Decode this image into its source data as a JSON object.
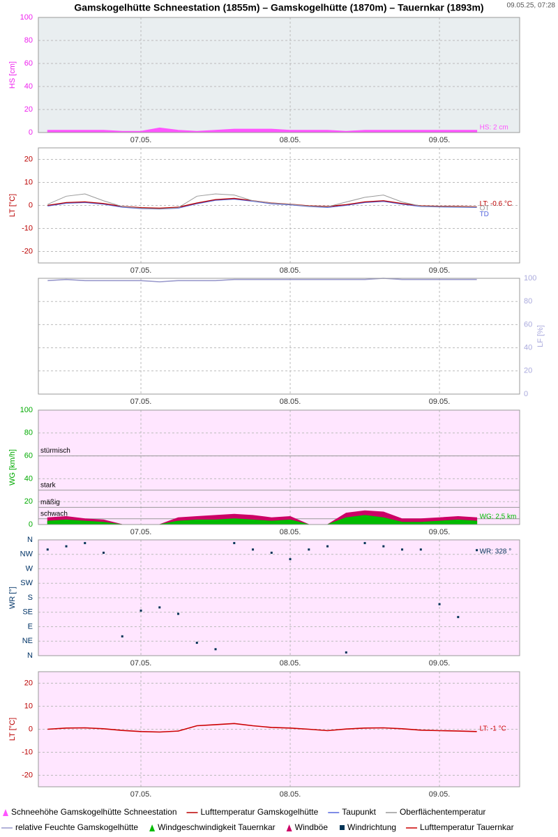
{
  "header": {
    "title": "Gamskogelhütte Schneestation (1855m) – Gamskogelhütte (1870m) – Tauernkar (1893m)",
    "timestamp": "09.05.25, 07:28"
  },
  "chart_data": [
    {
      "type": "area",
      "ylabel": "HS [cm]",
      "axis_color": "#ee22ee",
      "background": "#e9eef0",
      "grid": true,
      "xlim": [
        6.313,
        9.537
      ],
      "xticks": [
        {
          "value": 7,
          "label": "07.05."
        },
        {
          "value": 8,
          "label": "08.05."
        },
        {
          "value": 9,
          "label": "09.05."
        }
      ],
      "ylim": [
        0,
        100
      ],
      "yticks": [
        0,
        20,
        40,
        60,
        80,
        100
      ],
      "x": [
        6.375,
        6.5,
        6.625,
        6.75,
        6.875,
        7.0,
        7.125,
        7.25,
        7.375,
        7.5,
        7.625,
        7.75,
        7.875,
        8.0,
        8.125,
        8.25,
        8.375,
        8.5,
        8.625,
        8.75,
        8.875,
        9.0,
        9.125,
        9.25
      ],
      "series": [
        {
          "name": "Schneehöhe Gamskogelhütte Schneestation",
          "color": "#ff55ff",
          "label": "HS: 2 cm",
          "values": [
            2,
            2,
            2,
            2,
            1,
            1,
            4,
            2,
            1,
            2,
            3,
            3,
            3,
            2,
            2,
            2,
            1,
            2,
            2,
            2,
            2,
            2,
            2,
            2
          ]
        }
      ]
    },
    {
      "type": "line",
      "ylabel": "LT [°C]",
      "axis_color": "#bb0000",
      "background": "#ffffff",
      "grid": true,
      "xlim": [
        6.313,
        9.537
      ],
      "xticks": [
        {
          "value": 7,
          "label": "07.05."
        },
        {
          "value": 8,
          "label": "08.05."
        },
        {
          "value": 9,
          "label": "09.05."
        }
      ],
      "ylim": [
        -25,
        25
      ],
      "yticks": [
        -20,
        -10,
        0,
        10,
        20
      ],
      "x": [
        6.375,
        6.5,
        6.625,
        6.75,
        6.875,
        7.0,
        7.125,
        7.25,
        7.375,
        7.5,
        7.625,
        7.75,
        7.875,
        8.0,
        8.125,
        8.25,
        8.375,
        8.5,
        8.625,
        8.75,
        8.875,
        9.0,
        9.125,
        9.25
      ],
      "series": [
        {
          "name": "Lufttemperatur Gamskogelhütte",
          "color": "#bb0000",
          "label": "LT: -0.6 °C",
          "values": [
            0.0,
            1.2,
            1.5,
            0.8,
            -0.5,
            -1.0,
            -1.2,
            -0.8,
            1.0,
            2.5,
            3.0,
            2.0,
            1.0,
            0.5,
            -0.2,
            -0.5,
            0.3,
            1.5,
            2.0,
            0.8,
            -0.2,
            -0.4,
            -0.5,
            -0.6
          ]
        },
        {
          "name": "Taupunkt",
          "color": "#5566dd",
          "label": "TD",
          "values": [
            -0.3,
            0.9,
            1.2,
            0.5,
            -0.8,
            -1.4,
            -1.6,
            -1.2,
            0.7,
            2.2,
            2.7,
            1.8,
            0.7,
            0.2,
            -0.5,
            -0.9,
            0.0,
            1.2,
            1.7,
            0.5,
            -0.5,
            -0.7,
            -0.8,
            -0.9
          ]
        },
        {
          "name": "Oberflächentemperatur",
          "color": "#999999",
          "label": "OT",
          "values": [
            0.5,
            4.0,
            5.0,
            2.0,
            -0.5,
            -1.2,
            -1.5,
            -1.0,
            4.0,
            5.0,
            4.5,
            2.0,
            1.0,
            0.5,
            -0.3,
            -0.6,
            1.5,
            3.5,
            4.5,
            1.5,
            -0.3,
            -0.5,
            -0.6,
            -0.7
          ]
        }
      ]
    },
    {
      "type": "line",
      "ylabel": "LF [%]",
      "yaxis": "right",
      "axis_color": "#aaaadd",
      "background": "#ffffff",
      "grid": true,
      "xlim": [
        6.313,
        9.537
      ],
      "xticks": [
        {
          "value": 7,
          "label": "07.05."
        },
        {
          "value": 8,
          "label": "08.05."
        },
        {
          "value": 9,
          "label": "09.05."
        }
      ],
      "ylim": [
        0,
        100
      ],
      "yticks": [
        0,
        20,
        40,
        60,
        80,
        100
      ],
      "x": [
        6.375,
        6.5,
        6.625,
        6.75,
        6.875,
        7.0,
        7.125,
        7.25,
        7.375,
        7.5,
        7.625,
        7.75,
        7.875,
        8.0,
        8.125,
        8.25,
        8.375,
        8.5,
        8.625,
        8.75,
        8.875,
        9.0,
        9.125,
        9.25
      ],
      "series": [
        {
          "name": "relative Feuchte Gamskogelhütte",
          "color": "#9999cc",
          "values": [
            98,
            99,
            98,
            98,
            98,
            98,
            97,
            98,
            98,
            98,
            99,
            99,
            99,
            99,
            99,
            99,
            99,
            99,
            100,
            99,
            99,
            99,
            99,
            99
          ]
        }
      ]
    },
    {
      "type": "area",
      "ylabel": "WG [km/h]",
      "axis_color": "#00aa00",
      "background": "#ffe6ff",
      "grid": true,
      "xlim": [
        6.313,
        9.537
      ],
      "xticks": [
        {
          "value": 7,
          "label": "07.05."
        },
        {
          "value": 8,
          "label": "08.05."
        },
        {
          "value": 9,
          "label": "09.05."
        }
      ],
      "ylim": [
        0,
        100
      ],
      "yticks": [
        0,
        20,
        40,
        60,
        80,
        100
      ],
      "thresholds": [
        {
          "value": 60,
          "label": "stürmisch"
        },
        {
          "value": 30,
          "label": "stark"
        },
        {
          "value": 15,
          "label": "mäßig"
        },
        {
          "value": 5,
          "label": "schwach"
        }
      ],
      "x": [
        6.375,
        6.5,
        6.625,
        6.75,
        6.875,
        7.0,
        7.125,
        7.25,
        7.375,
        7.5,
        7.625,
        7.75,
        7.875,
        8.0,
        8.125,
        8.25,
        8.375,
        8.5,
        8.625,
        8.75,
        8.875,
        9.0,
        9.125,
        9.25
      ],
      "series": [
        {
          "name": "Windgeschwindigkeit Tauernkar",
          "color": "#00bb00",
          "label": "WG: 2,5 km",
          "values": [
            3,
            4,
            3,
            2,
            0,
            0,
            0,
            3,
            4,
            4,
            5,
            4,
            3,
            4,
            0,
            0,
            6,
            8,
            6,
            2,
            2,
            3,
            4,
            3
          ]
        },
        {
          "name": "Windböe",
          "color": "#cc0066",
          "values": [
            6,
            7,
            5,
            4,
            0,
            0,
            0,
            6,
            7,
            8,
            9,
            8,
            6,
            7,
            0,
            0,
            10,
            12,
            11,
            5,
            5,
            6,
            7,
            6
          ]
        }
      ]
    },
    {
      "type": "scatter",
      "ylabel": "WR [°]",
      "axis_color": "#003366",
      "background": "#ffe6ff",
      "grid": true,
      "xlim": [
        6.313,
        9.537
      ],
      "xticks": [
        {
          "value": 7,
          "label": "07.05."
        },
        {
          "value": 8,
          "label": "08.05."
        },
        {
          "value": 9,
          "label": "09.05."
        }
      ],
      "ylim": [
        0,
        360
      ],
      "yticks": [
        {
          "value": 0,
          "label": "N"
        },
        {
          "value": 45,
          "label": "NE"
        },
        {
          "value": 90,
          "label": "E"
        },
        {
          "value": 135,
          "label": "SE"
        },
        {
          "value": 180,
          "label": "S"
        },
        {
          "value": 225,
          "label": "SW"
        },
        {
          "value": 270,
          "label": "W"
        },
        {
          "value": 315,
          "label": "NW"
        },
        {
          "value": 360,
          "label": "N"
        }
      ],
      "x": [
        6.375,
        6.5,
        6.625,
        6.75,
        6.875,
        7.0,
        7.125,
        7.25,
        7.375,
        7.5,
        7.625,
        7.75,
        7.875,
        8.0,
        8.125,
        8.25,
        8.375,
        8.5,
        8.625,
        8.75,
        8.875,
        9.0,
        9.125,
        9.25
      ],
      "series": [
        {
          "name": "Windrichtung",
          "color": "#003355",
          "label": "WR: 328 °",
          "values": [
            330,
            340,
            350,
            320,
            60,
            140,
            150,
            130,
            40,
            20,
            350,
            330,
            320,
            300,
            330,
            340,
            10,
            350,
            340,
            330,
            330,
            160,
            120,
            328
          ]
        }
      ]
    },
    {
      "type": "line",
      "ylabel": "LT [°C]",
      "axis_color": "#bb0000",
      "background": "#ffe6ff",
      "grid": true,
      "xlim": [
        6.313,
        9.537
      ],
      "xticks": [
        {
          "value": 7,
          "label": "07.05."
        },
        {
          "value": 8,
          "label": "08.05."
        },
        {
          "value": 9,
          "label": "09.05."
        }
      ],
      "ylim": [
        -25,
        25
      ],
      "yticks": [
        -20,
        -10,
        0,
        10,
        20
      ],
      "x": [
        6.375,
        6.5,
        6.625,
        6.75,
        6.875,
        7.0,
        7.125,
        7.25,
        7.375,
        7.5,
        7.625,
        7.75,
        7.875,
        8.0,
        8.125,
        8.25,
        8.375,
        8.5,
        8.625,
        8.75,
        8.875,
        9.0,
        9.125,
        9.25
      ],
      "series": [
        {
          "name": "Lufttemperatur Tauernkar",
          "color": "#cc0000",
          "label": "LT: -1 °C",
          "values": [
            0.0,
            0.5,
            0.6,
            0.2,
            -0.5,
            -1.0,
            -1.2,
            -0.8,
            1.5,
            2.0,
            2.5,
            1.5,
            0.8,
            0.5,
            0.0,
            -0.6,
            0.1,
            0.5,
            0.6,
            0.2,
            -0.4,
            -0.6,
            -0.8,
            -1.0
          ]
        }
      ]
    }
  ]
}
